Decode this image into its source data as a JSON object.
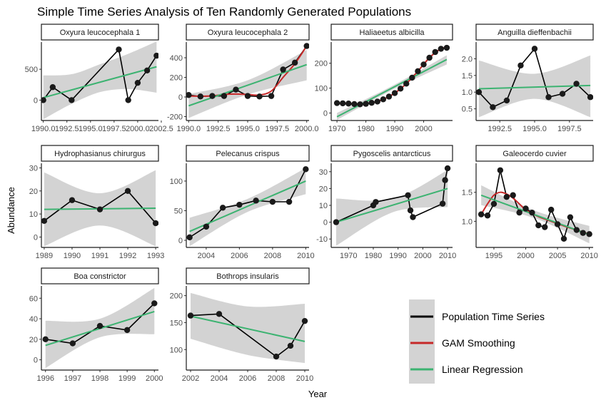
{
  "title": "Simple Time Series Analysis of Ten Randomly Generated Populations",
  "xlabel": "Year",
  "ylabel": "Abundance",
  "colors": {
    "series": "#000000",
    "gam": "#c62828",
    "lm": "#3cb371",
    "ribbon": "#d3d3d3"
  },
  "legend": {
    "placement": "bottom-right",
    "items": [
      {
        "label": "Population Time Series",
        "color": "#000000"
      },
      {
        "label": "GAM Smoothing",
        "color": "#c62828"
      },
      {
        "label": "Linear Regression",
        "color": "#3cb371"
      }
    ]
  },
  "chart_data": [
    {
      "type": "line",
      "title": "Oxyura leucocephala 1",
      "x": [
        1990,
        1991,
        1993,
        1998,
        1999,
        2000,
        2001,
        2002
      ],
      "y": [
        0,
        210,
        0,
        820,
        0,
        280,
        480,
        720
      ],
      "xlim": [
        1989.8,
        2002.2
      ],
      "ylim": [
        -330,
        940
      ],
      "xticks": [
        1990,
        1992.5,
        1995,
        1997.5,
        2000,
        2002.5
      ],
      "xticklabels": [
        "1990.0",
        "1992.5",
        "1995.0",
        "1997.5",
        "2000.0",
        "2002.5"
      ],
      "yticks": [
        0,
        500
      ],
      "yticklabels": [
        "0",
        "500"
      ],
      "lm": {
        "x": [
          1990,
          2002
        ],
        "y": [
          40,
          540
        ]
      },
      "band": {
        "x": [
          1990,
          1993,
          1996,
          1999,
          2002
        ],
        "lower": [
          -310,
          -60,
          130,
          180,
          120
        ],
        "upper": [
          400,
          420,
          580,
          750,
          950
        ]
      },
      "gam": null
    },
    {
      "type": "line",
      "title": "Oxyura leucocephala 2",
      "x": [
        1990,
        1991,
        1992,
        1993,
        1994,
        1995,
        1996,
        1997,
        1998,
        1999,
        2000
      ],
      "y": [
        20,
        5,
        10,
        10,
        75,
        10,
        5,
        10,
        280,
        350,
        520
      ],
      "xlim": [
        1989.8,
        2000.2
      ],
      "ylim": [
        -240,
        560
      ],
      "xticks": [
        1990,
        1992.5,
        1995,
        1997.5,
        2000
      ],
      "xticklabels": [
        "1990.0",
        "1992.5",
        "1995.0",
        "1997.5",
        "2000.0"
      ],
      "yticks": [
        -200,
        0,
        200,
        400
      ],
      "yticklabels": [
        "-200",
        "0",
        "200",
        "400"
      ],
      "lm": {
        "x": [
          1990,
          2000
        ],
        "y": [
          -90,
          330
        ]
      },
      "band": {
        "x": [
          1990,
          1995,
          2000
        ],
        "lower": [
          -215,
          25,
          170
        ],
        "upper": [
          30,
          170,
          480
        ]
      },
      "gam": {
        "x": [
          1990,
          1991,
          1992,
          1993,
          1994,
          1995,
          1996,
          1997,
          1998,
          1999,
          2000
        ],
        "y": [
          10,
          8,
          12,
          25,
          30,
          25,
          20,
          60,
          200,
          340,
          520
        ]
      }
    },
    {
      "type": "line",
      "title": "Haliaeetus albicilla",
      "x": [
        1970,
        1972,
        1974,
        1976,
        1978,
        1980,
        1982,
        1984,
        1986,
        1988,
        1990,
        1992,
        1994,
        1996,
        1998,
        2000,
        2002,
        2004,
        2006,
        2008
      ],
      "y": [
        40,
        39,
        38,
        36,
        35,
        37,
        41,
        46,
        55,
        66,
        80,
        98,
        118,
        142,
        168,
        195,
        222,
        245,
        258,
        262
      ],
      "xlim": [
        1968,
        2010
      ],
      "ylim": [
        -30,
        285
      ],
      "xticks": [
        1970,
        1980,
        1990,
        2000
      ],
      "xticklabels": [
        "1970",
        "1980",
        "1990",
        "2000"
      ],
      "yticks": [
        0,
        100,
        200
      ],
      "yticklabels": [
        "0",
        "100",
        "200"
      ],
      "lm": {
        "x": [
          1970,
          2008
        ],
        "y": [
          -15,
          215
        ]
      },
      "band": {
        "x": [
          1970,
          1989,
          2008
        ],
        "lower": [
          -28,
          92,
          195
        ],
        "upper": [
          0,
          108,
          232
        ]
      },
      "gam": {
        "x": [
          1970,
          1974,
          1978,
          1982,
          1986,
          1990,
          1994,
          1998,
          2002,
          2006,
          2008
        ],
        "y": [
          40,
          38,
          35,
          41,
          55,
          80,
          118,
          168,
          222,
          258,
          262
        ]
      }
    },
    {
      "type": "line",
      "title": "Anguilla dieffenbachii",
      "x": [
        1991,
        1992,
        1993,
        1994,
        1995,
        1996,
        1997,
        1998,
        1999
      ],
      "y": [
        1.0,
        0.55,
        0.75,
        1.8,
        2.3,
        0.85,
        0.95,
        1.25,
        0.85
      ],
      "xlim": [
        1990.8,
        1999.2
      ],
      "ylim": [
        0.15,
        2.5
      ],
      "xticks": [
        1992.5,
        1995,
        1997.5
      ],
      "xticklabels": [
        "1992.5",
        "1995.0",
        "1997.5"
      ],
      "yticks": [
        0.5,
        1.0,
        1.5,
        2.0
      ],
      "yticklabels": [
        "0.5",
        "1.0",
        "1.5",
        "2.0"
      ],
      "lm": {
        "x": [
          1991,
          1999
        ],
        "y": [
          1.1,
          1.2
        ]
      },
      "band": {
        "x": [
          1991,
          1995,
          1999
        ],
        "lower": [
          0.25,
          0.8,
          0.25
        ],
        "upper": [
          1.95,
          1.55,
          2.1
        ]
      },
      "gam": null
    },
    {
      "type": "line",
      "title": "Hydrophasianus chirurgus",
      "x": [
        1989,
        1990,
        1991,
        1992,
        1993
      ],
      "y": [
        7,
        16,
        12,
        20,
        6
      ],
      "xlim": [
        1988.9,
        1993.1
      ],
      "ylim": [
        -4.5,
        32
      ],
      "xticks": [
        1989,
        1990,
        1991,
        1992,
        1993
      ],
      "xticklabels": [
        "1989",
        "1990",
        "1991",
        "1992",
        "1993"
      ],
      "yticks": [
        0,
        10,
        20,
        30
      ],
      "yticklabels": [
        "0",
        "10",
        "20",
        "30"
      ],
      "lm": {
        "x": [
          1989,
          1993
        ],
        "y": [
          12,
          12.5
        ]
      },
      "band": {
        "x": [
          1989,
          1991,
          1993
        ],
        "lower": [
          -4,
          5,
          -4
        ],
        "upper": [
          28,
          19,
          29
        ]
      },
      "gam": null
    },
    {
      "type": "line",
      "title": "Pelecanus crispus",
      "x": [
        2003,
        2004,
        2005,
        2006,
        2007,
        2008,
        2009,
        2010
      ],
      "y": [
        5,
        23,
        55,
        60,
        67,
        65,
        65,
        120
      ],
      "xlim": [
        2002.8,
        2010.2
      ],
      "ylim": [
        -12,
        130
      ],
      "xticks": [
        2004,
        2006,
        2008,
        2010
      ],
      "xticklabels": [
        "2004",
        "2006",
        "2008",
        "2010"
      ],
      "yticks": [
        0,
        50,
        100
      ],
      "yticklabels": [
        "0",
        "50",
        "100"
      ],
      "lm": {
        "x": [
          2003,
          2010
        ],
        "y": [
          15,
          100
        ]
      },
      "band": {
        "x": [
          2003,
          2006.5,
          2010
        ],
        "lower": [
          -10,
          48,
          78
        ],
        "upper": [
          38,
          70,
          122
        ]
      },
      "gam": null
    },
    {
      "type": "line",
      "title": "Pygoscelis antarcticus",
      "x": [
        1965,
        1980,
        1981,
        1994,
        1995,
        1996,
        2008,
        2009,
        2010
      ],
      "y": [
        0,
        10,
        12,
        16,
        7,
        3,
        11,
        25,
        32
      ],
      "xlim": [
        1963,
        2012
      ],
      "ylim": [
        -15,
        35
      ],
      "xticks": [
        1970,
        1980,
        1990,
        2000,
        2010
      ],
      "xticklabels": [
        "1970",
        "1980",
        "1990",
        "2000",
        "2010"
      ],
      "yticks": [
        -10,
        0,
        10,
        20,
        30
      ],
      "yticklabels": [
        "-10",
        "0",
        "10",
        "20",
        "30"
      ],
      "lm": {
        "x": [
          1965,
          2010
        ],
        "y": [
          0,
          20
        ]
      },
      "band": {
        "x": [
          1965,
          1988,
          2010
        ],
        "lower": [
          -14,
          6,
          9
        ],
        "upper": [
          14,
          14,
          31
        ]
      },
      "gam": null
    },
    {
      "type": "line",
      "title": "Galeocerdo cuvier",
      "x": [
        1993,
        1994,
        1995,
        1996,
        1997,
        1998,
        1999,
        2000,
        2001,
        2002,
        2003,
        2004,
        2005,
        2006,
        2007,
        2008,
        2009,
        2010
      ],
      "y": [
        1.12,
        1.1,
        1.3,
        1.88,
        1.42,
        1.45,
        1.15,
        1.22,
        1.15,
        0.93,
        0.9,
        1.2,
        0.95,
        0.7,
        1.07,
        0.85,
        0.8,
        0.78
      ],
      "xlim": [
        1992.2,
        2010.6
      ],
      "ylim": [
        0.55,
        2.0
      ],
      "xticks": [
        1995,
        2000,
        2005,
        2010
      ],
      "xticklabels": [
        "1995",
        "2000",
        "2005",
        "2010"
      ],
      "yticks": [
        1.0,
        1.5
      ],
      "yticklabels": [
        "1.0",
        "1.5"
      ],
      "lm": {
        "x": [
          1993,
          2010
        ],
        "y": [
          1.45,
          0.77
        ]
      },
      "band": {
        "x": [
          1993,
          2001.5,
          2010
        ],
        "lower": [
          1.28,
          1.05,
          0.62
        ],
        "upper": [
          1.62,
          1.18,
          0.92
        ]
      },
      "gam": {
        "x": [
          1993,
          1994,
          1995,
          1996,
          1997,
          1998,
          1999,
          2000,
          2002,
          2004,
          2006,
          2008,
          2010
        ],
        "y": [
          1.12,
          1.3,
          1.45,
          1.5,
          1.47,
          1.4,
          1.3,
          1.2,
          1.08,
          1.0,
          0.92,
          0.85,
          0.78
        ]
      }
    },
    {
      "type": "line",
      "title": "Boa constrictor",
      "x": [
        1996,
        1997,
        1998,
        1999,
        2000
      ],
      "y": [
        20,
        16,
        33,
        29,
        55
      ],
      "xlim": [
        1995.85,
        2000.15
      ],
      "ylim": [
        -10,
        72
      ],
      "xticks": [
        1996,
        1997,
        1998,
        1999,
        2000
      ],
      "xticklabels": [
        "1996",
        "1997",
        "1998",
        "1999",
        "2000"
      ],
      "yticks": [
        0,
        20,
        40,
        60
      ],
      "yticklabels": [
        "0",
        "20",
        "40",
        "60"
      ],
      "lm": {
        "x": [
          1996,
          2000
        ],
        "y": [
          14,
          47
        ]
      },
      "band": {
        "x": [
          1996,
          1998,
          2000
        ],
        "lower": [
          -8,
          22,
          25
        ],
        "upper": [
          38,
          40,
          70
        ]
      },
      "gam": null
    },
    {
      "type": "line",
      "title": "Bothrops insularis",
      "x": [
        2002,
        2004,
        2008,
        2009,
        2010
      ],
      "y": [
        163,
        166,
        87,
        107,
        153
      ],
      "xlim": [
        2001.7,
        2010.3
      ],
      "ylim": [
        62,
        218
      ],
      "xticks": [
        2002,
        2004,
        2006,
        2008,
        2010
      ],
      "xticklabels": [
        "2002",
        "2004",
        "2006",
        "2008",
        "2010"
      ],
      "yticks": [
        100,
        150,
        200
      ],
      "yticklabels": [
        "100",
        "150",
        "200"
      ],
      "lm": {
        "x": [
          2002,
          2010
        ],
        "y": [
          162,
          115
        ]
      },
      "band": {
        "x": [
          2002,
          2006,
          2010
        ],
        "lower": [
          120,
          90,
          75
        ],
        "upper": [
          205,
          180,
          185
        ]
      },
      "gam": null
    }
  ]
}
